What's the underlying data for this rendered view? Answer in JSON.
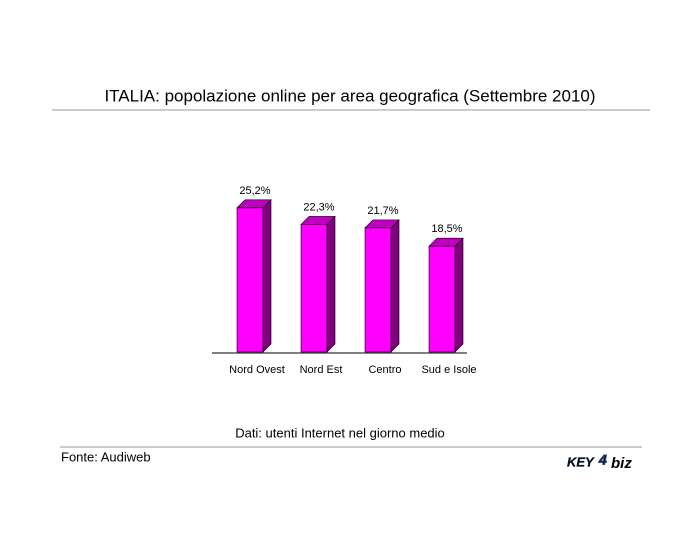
{
  "chart_data": {
    "type": "bar3d",
    "title": "ITALIA: popolazione online per area geografica (Settembre 2010)",
    "categories": [
      "Nord Ovest",
      "Nord Est",
      "Centro",
      "Sud e Isole"
    ],
    "values": [
      25.2,
      22.3,
      21.7,
      18.5
    ],
    "value_labels": [
      "25,2%",
      "22,3%",
      "21,7%",
      "18,5%"
    ],
    "color": "#ff00ff",
    "caption": "Dati: utenti Internet nel giorno medio",
    "source": "Fonte: Audiweb"
  },
  "logo": {
    "left": "KEY",
    "mid": "4",
    "right": "biz"
  }
}
